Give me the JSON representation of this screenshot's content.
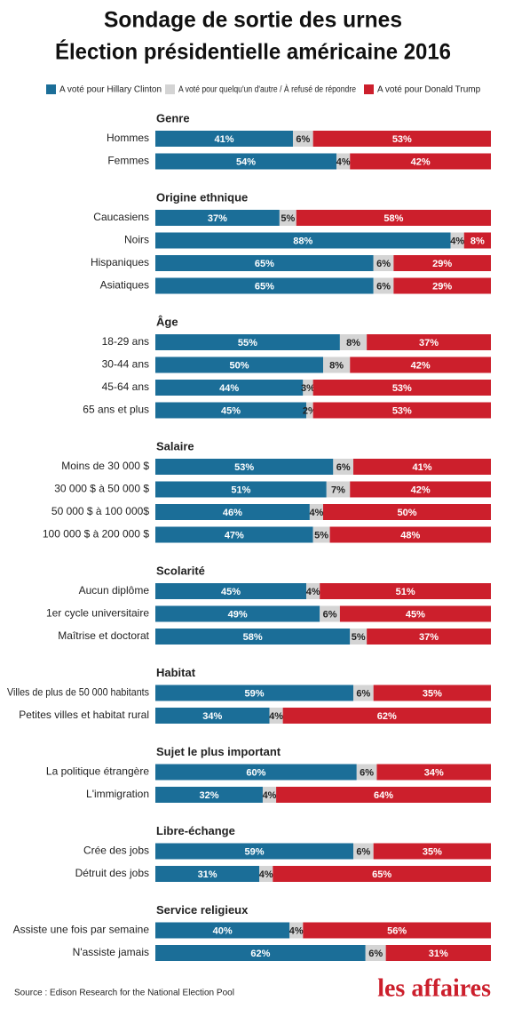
{
  "chart_data": {
    "type": "stacked-bar",
    "title": "Sondage de sortie des urnes",
    "subtitle": "Élection présidentielle américaine 2016",
    "series": [
      {
        "name": "A voté pour Hillary Clinton",
        "color": "#1b6e98"
      },
      {
        "name": "A voté pour quelqu'un d'autre / À refusé de répondre",
        "color": "#d4d4d4"
      },
      {
        "name": "A voté pour Donald Trump",
        "color": "#cc1f2c"
      }
    ],
    "groups": [
      {
        "name": "Genre",
        "categories": [
          "Hommes",
          "Femmes"
        ],
        "values": [
          [
            41,
            6,
            53
          ],
          [
            54,
            4,
            42
          ]
        ],
        "value_labels": [
          [
            "41%",
            "6%",
            "53%"
          ],
          [
            "54%",
            "4%",
            "42%"
          ]
        ]
      },
      {
        "name": "Origine ethnique",
        "categories": [
          "Caucasiens",
          "Noirs",
          "Hispaniques",
          "Asiatiques"
        ],
        "values": [
          [
            37,
            5,
            58
          ],
          [
            88,
            4,
            8
          ],
          [
            65,
            6,
            29
          ],
          [
            65,
            6,
            29
          ]
        ],
        "value_labels": [
          [
            "37%",
            "5%",
            "58%"
          ],
          [
            "88%",
            "4%",
            "8%"
          ],
          [
            "65%",
            "6%",
            "29%"
          ],
          [
            "65%",
            "6%",
            "29%"
          ]
        ]
      },
      {
        "name": "Âge",
        "categories": [
          "18-29 ans",
          "30-44 ans",
          "45-64 ans",
          "65 ans et plus"
        ],
        "values": [
          [
            55,
            8,
            37
          ],
          [
            50,
            8,
            42
          ],
          [
            44,
            3,
            53
          ],
          [
            45,
            2,
            53
          ]
        ],
        "value_labels": [
          [
            "55%",
            "8%",
            "37%"
          ],
          [
            "50%",
            "8%",
            "42%"
          ],
          [
            "44%",
            "3%",
            "53%"
          ],
          [
            "45%",
            "2%",
            "53%"
          ]
        ]
      },
      {
        "name": "Salaire",
        "categories": [
          "Moins de 30 000 $",
          "30 000 $ à 50 000 $",
          "50 000 $ à 100 000$",
          "100 000 $ à 200 000 $"
        ],
        "values": [
          [
            53,
            6,
            41
          ],
          [
            51,
            7,
            42
          ],
          [
            46,
            4,
            50
          ],
          [
            47,
            5,
            48
          ]
        ],
        "value_labels": [
          [
            "53%",
            "6%",
            "41%"
          ],
          [
            "51%",
            "7%",
            "42%"
          ],
          [
            "46%",
            "4%",
            "50%"
          ],
          [
            "47%",
            "5%",
            "48%"
          ]
        ]
      },
      {
        "name": "Scolarité",
        "categories": [
          "Aucun diplôme",
          "1er cycle universitaire",
          "Maîtrise et doctorat"
        ],
        "values": [
          [
            45,
            4,
            51
          ],
          [
            49,
            6,
            45
          ],
          [
            58,
            5,
            37
          ]
        ],
        "value_labels": [
          [
            "45%",
            "4%",
            "51%"
          ],
          [
            "49%",
            "6%",
            "45%"
          ],
          [
            "58%",
            "5%",
            "37%"
          ]
        ]
      },
      {
        "name": "Habitat",
        "categories": [
          "Villes de plus de 50 000 habitants",
          "Petites villes et habitat rural"
        ],
        "values": [
          [
            59,
            6,
            35
          ],
          [
            34,
            4,
            62
          ]
        ],
        "value_labels": [
          [
            "59%",
            "6%",
            "35%"
          ],
          [
            "34%",
            "4%",
            "62%"
          ]
        ]
      },
      {
        "name": "Sujet le plus important",
        "categories": [
          "La politique étrangère",
          "L'immigration"
        ],
        "values": [
          [
            60,
            6,
            34
          ],
          [
            32,
            4,
            64
          ]
        ],
        "value_labels": [
          [
            "60%",
            "6%",
            "34%"
          ],
          [
            "32%",
            "4%",
            "64%"
          ]
        ]
      },
      {
        "name": "Libre-échange",
        "categories": [
          "Crée des jobs",
          "Détruit des jobs"
        ],
        "values": [
          [
            59,
            6,
            35
          ],
          [
            31,
            4,
            65
          ]
        ],
        "value_labels": [
          [
            "59%",
            "6%",
            "35%"
          ],
          [
            "31%",
            "4%",
            "65%"
          ]
        ]
      },
      {
        "name": "Service religieux",
        "categories": [
          "Assiste une fois par semaine",
          "N'assiste jamais"
        ],
        "values": [
          [
            40,
            4,
            56
          ],
          [
            62,
            6,
            31
          ]
        ],
        "value_labels": [
          [
            "40%",
            "4%",
            "56%"
          ],
          [
            "62%",
            "6%",
            "31%"
          ]
        ]
      }
    ],
    "source": "Source : Edison Research for the National Election Pool",
    "logo": "les affaires"
  }
}
